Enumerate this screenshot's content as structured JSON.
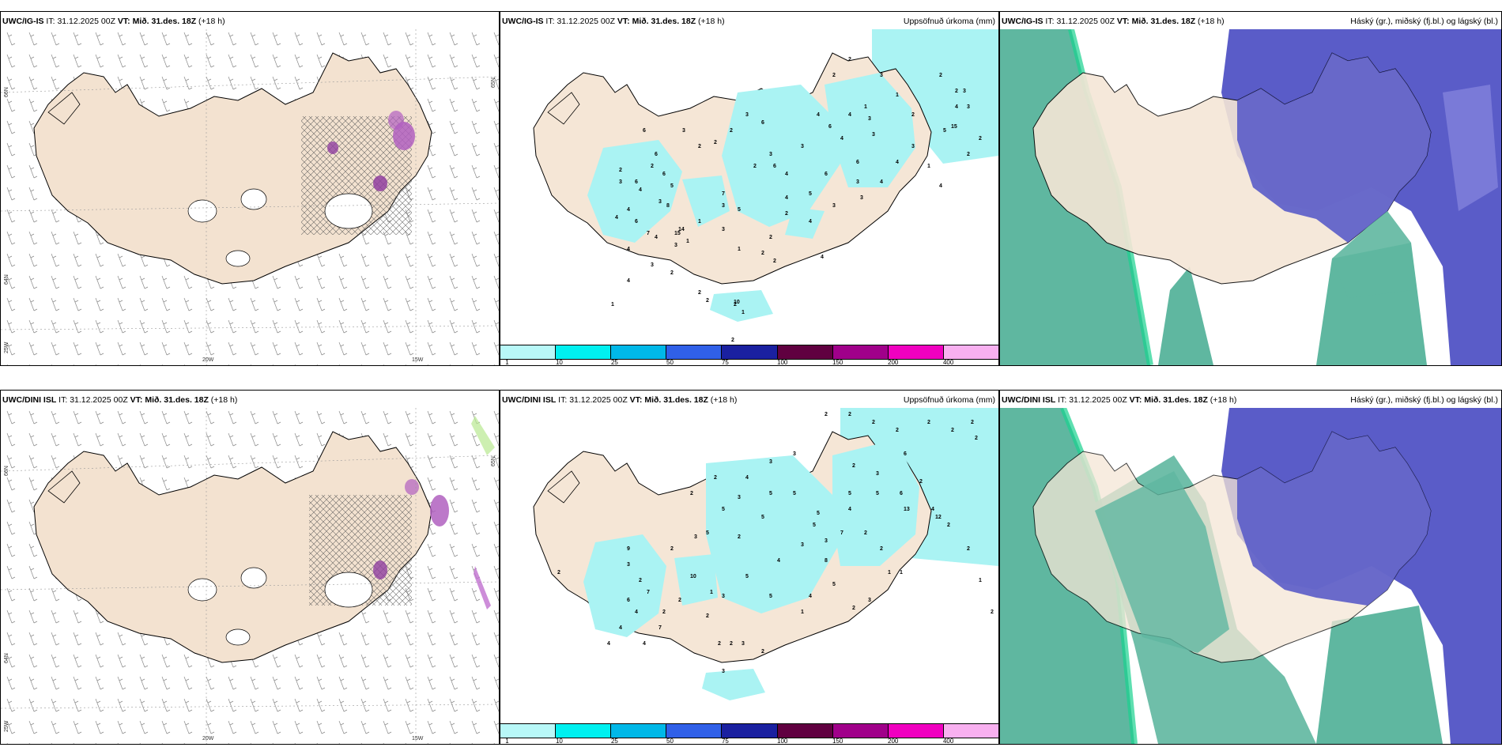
{
  "panels": [
    {
      "id": "top-left",
      "model": "UWC/IG-IS",
      "it_label": "IT:",
      "it_value": "31.12.2025 00Z",
      "vt_label": "VT:",
      "vt_value": "Mið. 31.des. 18Z",
      "lead": "(+18 h)",
      "right_title": "",
      "lat_labels": [
        "66N",
        "64N",
        "65N",
        "25W"
      ],
      "lon_labels": [
        "20W",
        "15W"
      ]
    },
    {
      "id": "top-middle",
      "model": "UWC/IG-IS",
      "it_label": "IT:",
      "it_value": "31.12.2025 00Z",
      "vt_label": "VT:",
      "vt_value": "Mið. 31.des. 18Z",
      "lead": "(+18 h)",
      "right_title": "Uppsöfnuð úrkoma (mm)",
      "numbers": [
        "2",
        "2",
        "3",
        "1",
        "2",
        "2",
        "3",
        "4",
        "3",
        "3",
        "3",
        "2",
        "2",
        "4",
        "4",
        "3",
        "6",
        "6",
        "6",
        "4",
        "4",
        "15",
        "3",
        "2",
        "2",
        "1",
        "3",
        "4",
        "4",
        "2",
        "4",
        "3",
        "3",
        "7",
        "8",
        "6",
        "5",
        "1",
        "3",
        "4",
        "3",
        "4",
        "3",
        "5",
        "4",
        "2",
        "2",
        "6",
        "6",
        "3",
        "4",
        "3",
        "1",
        "4",
        "2",
        "2",
        "6",
        "6",
        "15",
        "14",
        "1",
        "1",
        "4",
        "2",
        "3",
        "6",
        "5",
        "6",
        "7",
        "4",
        "2",
        "4",
        "2",
        "2",
        "5",
        "2",
        "2",
        "1",
        "2",
        "4",
        "2",
        "3",
        "1",
        "10",
        "3",
        "3",
        "2"
      ]
    },
    {
      "id": "top-right",
      "model": "UWC/IG-IS",
      "it_label": "IT:",
      "it_value": "31.12.2025 00Z",
      "vt_label": "VT:",
      "vt_value": "Mið. 31.des. 18Z",
      "lead": "(+18 h)",
      "right_title": "Háský (gr.), miðský (fj.bl.) og lágský (bl.)"
    },
    {
      "id": "bottom-left",
      "model": "UWC/DINI ISL",
      "it_label": "IT:",
      "it_value": "31.12.2025 00Z",
      "vt_label": "VT:",
      "vt_value": "Mið. 31.des. 18Z",
      "lead": "(+18 h)",
      "right_title": "",
      "lat_labels": [
        "66N",
        "64N",
        "65N",
        "25W"
      ],
      "lon_labels": [
        "20W",
        "15W"
      ]
    },
    {
      "id": "bottom-middle",
      "model": "UWC/DINI ISL",
      "it_label": "IT:",
      "it_value": "31.12.2025 00Z",
      "vt_label": "VT:",
      "vt_value": "Mið. 31.des. 18Z",
      "lead": "(+18 h)",
      "right_title": "Uppsöfnuð úrkoma (mm)",
      "numbers": [
        "2",
        "2",
        "2",
        "2",
        "2",
        "2",
        "2",
        "2",
        "3",
        "3",
        "4",
        "3",
        "5",
        "2",
        "2",
        "5",
        "5",
        "5",
        "5",
        "2",
        "3",
        "6",
        "5",
        "6",
        "4",
        "2",
        "4",
        "2",
        "3",
        "5",
        "3",
        "3",
        "13",
        "12",
        "7",
        "5",
        "2",
        "2",
        "5",
        "2",
        "9",
        "7",
        "8",
        "4",
        "4",
        "4",
        "10",
        "3",
        "2",
        "2",
        "5",
        "4",
        "2",
        "1",
        "1",
        "3",
        "5",
        "4",
        "2",
        "2",
        "1",
        "6",
        "5",
        "3",
        "2",
        "7",
        "1",
        "4",
        "2",
        "2",
        "3",
        "2",
        "3",
        "2",
        "2",
        "1",
        "2"
      ]
    },
    {
      "id": "bottom-right",
      "model": "UWC/DINI ISL",
      "it_label": "IT:",
      "it_value": "31.12.2025 00Z",
      "vt_label": "VT:",
      "vt_value": "Mið. 31.des. 18Z",
      "lead": "(+18 h)",
      "right_title": "Háský (gr.), miðský (fj.bl.) og lágský (bl.)"
    }
  ],
  "precip_legend": {
    "ticks": [
      "1",
      "10",
      "25",
      "50",
      "75",
      "100",
      "150",
      "200",
      "400"
    ],
    "colors": [
      "#b8f8f8",
      "#00f0f0",
      "#00b8e8",
      "#3060e8",
      "#1a20a0",
      "#600040",
      "#a0008a",
      "#f000c0",
      "#f8b0f0"
    ]
  },
  "colors": {
    "land": "#f5e6d6",
    "land_warm": "#ecd9c6",
    "precip_light": "#aaf3f3",
    "cloud_high": "#5fb7a0",
    "cloud_high_edge": "#1ad28e",
    "cloud_mid": "#5a5cc8",
    "cloud_mid_light": "#7a7ad8",
    "hatch_purple": "#b060c0"
  }
}
